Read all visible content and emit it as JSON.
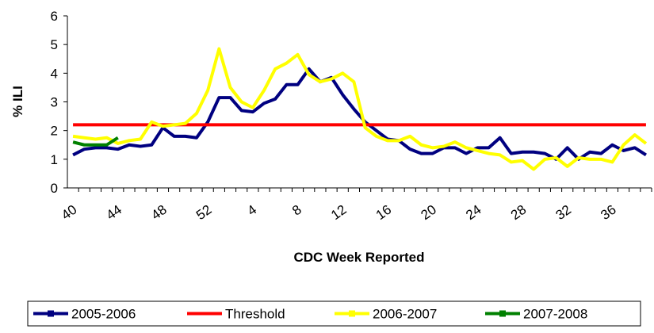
{
  "chart_data": {
    "type": "line",
    "y_label": "% ILI",
    "x_label": "CDC Week Reported",
    "categories": [
      "40",
      null,
      null,
      null,
      "44",
      null,
      null,
      null,
      "48",
      null,
      null,
      null,
      "52",
      null,
      null,
      null,
      "4",
      null,
      null,
      null,
      "8",
      null,
      null,
      null,
      "12",
      null,
      null,
      null,
      "16",
      null,
      null,
      null,
      "20",
      null,
      null,
      null,
      "24",
      null,
      null,
      null,
      "28",
      null,
      null,
      null,
      "32",
      null,
      null,
      null,
      "36",
      null,
      null,
      null
    ],
    "ylim": [
      0,
      6
    ],
    "yticks": [
      0,
      1,
      2,
      3,
      4,
      5,
      6
    ],
    "series": [
      {
        "name": "2005-2006",
        "color": "#000080",
        "values": [
          1.15,
          1.35,
          1.4,
          1.4,
          1.35,
          1.5,
          1.45,
          1.5,
          2.1,
          1.8,
          1.8,
          1.75,
          2.3,
          3.15,
          3.15,
          2.7,
          2.65,
          2.95,
          3.1,
          3.6,
          3.6,
          4.15,
          3.7,
          3.85,
          3.25,
          2.75,
          2.3,
          2.0,
          1.7,
          1.65,
          1.35,
          1.2,
          1.2,
          1.4,
          1.4,
          1.2,
          1.4,
          1.4,
          1.75,
          1.2,
          1.25,
          1.25,
          1.2,
          1.0,
          1.4,
          1.0,
          1.25,
          1.2,
          1.5,
          1.3,
          1.4,
          1.15
        ]
      },
      {
        "name": "Threshold",
        "color": "#ff0000",
        "values": [
          2.2,
          2.2,
          2.2,
          2.2,
          2.2,
          2.2,
          2.2,
          2.2,
          2.2,
          2.2,
          2.2,
          2.2,
          2.2,
          2.2,
          2.2,
          2.2,
          2.2,
          2.2,
          2.2,
          2.2,
          2.2,
          2.2,
          2.2,
          2.2,
          2.2,
          2.2,
          2.2,
          2.2,
          2.2,
          2.2,
          2.2,
          2.2,
          2.2,
          2.2,
          2.2,
          2.2,
          2.2,
          2.2,
          2.2,
          2.2,
          2.2,
          2.2,
          2.2,
          2.2,
          2.2,
          2.2,
          2.2,
          2.2,
          2.2,
          2.2,
          2.2,
          2.2
        ]
      },
      {
        "name": "2006-2007",
        "color": "#ffff00",
        "values": [
          1.8,
          1.75,
          1.7,
          1.75,
          1.55,
          1.65,
          1.7,
          2.3,
          2.15,
          2.2,
          2.25,
          2.6,
          3.4,
          4.85,
          3.5,
          3.0,
          2.8,
          3.4,
          4.15,
          4.35,
          4.65,
          3.95,
          3.7,
          3.8,
          4.0,
          3.7,
          2.1,
          1.8,
          1.65,
          1.65,
          1.8,
          1.5,
          1.4,
          1.45,
          1.6,
          1.4,
          1.3,
          1.2,
          1.15,
          0.9,
          0.95,
          0.65,
          1.0,
          1.05,
          0.75,
          1.05,
          1.0,
          1.0,
          0.9,
          1.5,
          1.85,
          1.55
        ]
      },
      {
        "name": "2007-2008",
        "color": "#008000",
        "values": [
          1.6,
          1.5,
          1.5,
          1.5,
          1.75,
          null,
          null,
          null,
          null,
          null,
          null,
          null,
          null,
          null,
          null,
          null,
          null,
          null,
          null,
          null,
          null,
          null,
          null,
          null,
          null,
          null,
          null,
          null,
          null,
          null,
          null,
          null,
          null,
          null,
          null,
          null,
          null,
          null,
          null,
          null,
          null,
          null,
          null,
          null,
          null,
          null,
          null,
          null,
          null,
          null,
          null,
          null
        ]
      }
    ]
  }
}
